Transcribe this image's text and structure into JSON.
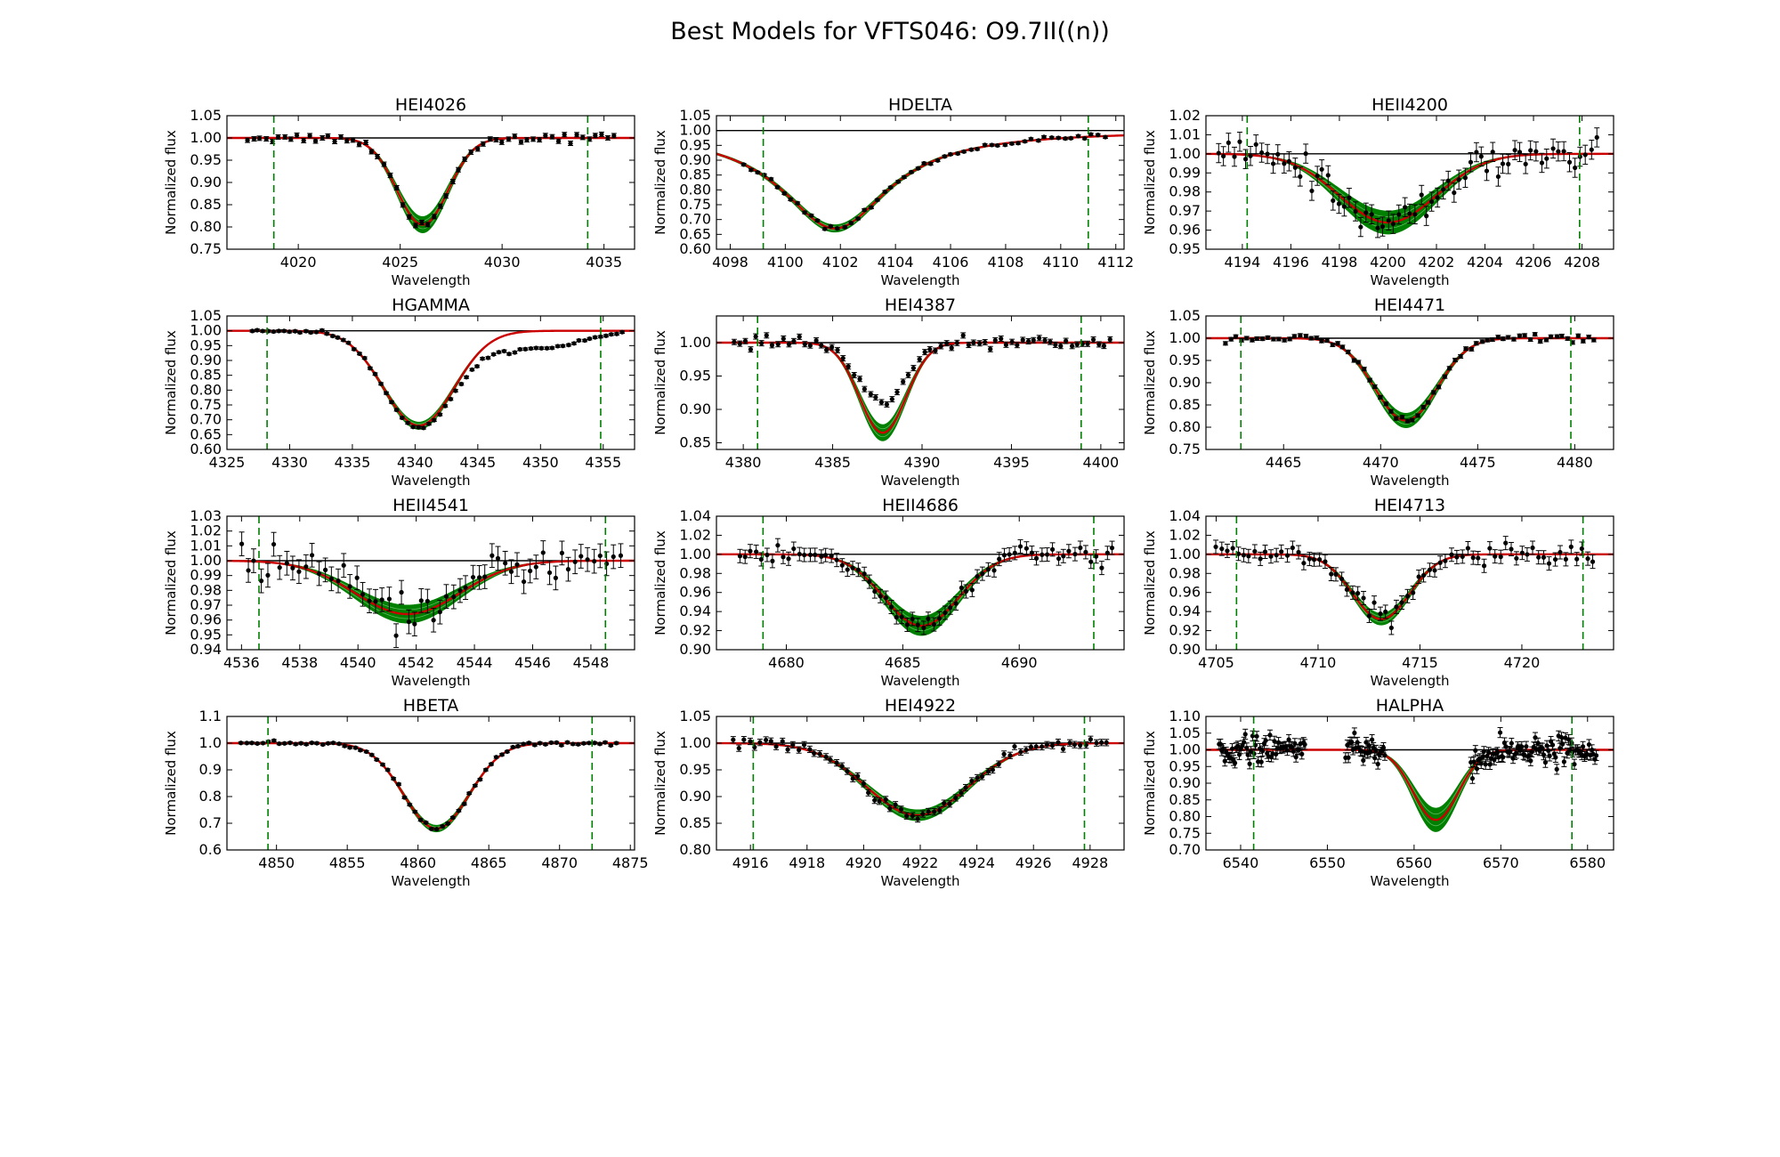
{
  "figure": {
    "title": "Best Models for VFTS046: O9.7II((n))",
    "colors": {
      "data": "#000000",
      "model_best": "#cc0000",
      "model_grid": "#008000",
      "window": "#008000",
      "continuum": "#000000"
    }
  },
  "chart_data": [
    {
      "type": "line",
      "title": "HEI4026",
      "xlabel": "Wavelength",
      "ylabel": "Normalized flux",
      "xlim": [
        4016.5,
        4036.5
      ],
      "ylim": [
        0.75,
        1.05
      ],
      "xticks": [
        4020,
        4025,
        4030,
        4035
      ],
      "xtick_labels": [
        "4020",
        "4025",
        "4030",
        "4035"
      ],
      "yticks": [
        0.75,
        0.8,
        0.85,
        0.9,
        0.95,
        1.0,
        1.05
      ],
      "ytick_labels": [
        "0.75",
        "0.80",
        "0.85",
        "0.90",
        "0.95",
        "1.00",
        "1.05"
      ],
      "windows": [
        4018.8,
        4034.2
      ],
      "line": {
        "center": 4026.1,
        "depth": 0.195,
        "width": 1.25,
        "spread": 0.018,
        "shape": "g"
      },
      "obs": {
        "x": [
          4017.5,
          4035.5
        ],
        "n": 60,
        "offset": 0.0,
        "offset_center": 4026.1,
        "offset_width": 2,
        "scatter": 0.005,
        "err": 0.005
      }
    },
    {
      "type": "line",
      "title": "HDELTA",
      "xlabel": "Wavelength",
      "ylabel": "Normalized flux",
      "xlim": [
        4097.5,
        4112.3
      ],
      "ylim": [
        0.6,
        1.05
      ],
      "xticks": [
        4098,
        4100,
        4102,
        4104,
        4106,
        4108,
        4110,
        4112
      ],
      "xtick_labels": [
        "4098",
        "4100",
        "4102",
        "4104",
        "4106",
        "4108",
        "4110",
        "4112"
      ],
      "yticks": [
        0.6,
        0.65,
        0.7,
        0.75,
        0.8,
        0.85,
        0.9,
        0.95,
        1.0,
        1.05
      ],
      "ytick_labels": [
        "0.60",
        "0.65",
        "0.70",
        "0.75",
        "0.80",
        "0.85",
        "0.90",
        "0.95",
        "1.00",
        "1.05"
      ],
      "windows": [
        4099.2,
        4111.0
      ],
      "line": {
        "center": 4101.8,
        "depth": 0.33,
        "width": 2.4,
        "spread": 0.012,
        "shape": "l"
      },
      "obs": {
        "x": [
          4098.5,
          4111.6
        ],
        "n": 55,
        "offset": 0.0,
        "offset_center": 4101.8,
        "offset_width": 2,
        "scatter": 0.004,
        "err": 0.004
      }
    },
    {
      "type": "line",
      "title": "HEII4200",
      "xlabel": "Wavelength",
      "ylabel": "Normalized flux",
      "xlim": [
        4192.5,
        4209.3
      ],
      "ylim": [
        0.95,
        1.02
      ],
      "xticks": [
        4194,
        4196,
        4198,
        4200,
        4202,
        4204,
        4206,
        4208
      ],
      "xtick_labels": [
        "4194",
        "4196",
        "4198",
        "4200",
        "4202",
        "4204",
        "4206",
        "4208"
      ],
      "yticks": [
        0.95,
        0.96,
        0.97,
        0.98,
        0.99,
        1.0,
        1.01,
        1.02
      ],
      "ytick_labels": [
        "0.95",
        "0.96",
        "0.97",
        "0.98",
        "0.99",
        "1.00",
        "1.01",
        "1.02"
      ],
      "windows": [
        4194.2,
        4207.9
      ],
      "line": {
        "center": 4200.0,
        "depth": 0.036,
        "width": 2.0,
        "spread": 0.006,
        "shape": "g"
      },
      "obs": {
        "x": [
          4193.0,
          4208.6
        ],
        "n": 70,
        "offset": 0.0,
        "offset_center": 4200,
        "offset_width": 2,
        "scatter": 0.004,
        "err": 0.005
      }
    },
    {
      "type": "line",
      "title": "HGAMMA",
      "xlabel": "Wavelength",
      "ylabel": "Normalized flux",
      "xlim": [
        4325,
        4357.5
      ],
      "ylim": [
        0.6,
        1.05
      ],
      "xticks": [
        4325,
        4330,
        4335,
        4340,
        4345,
        4350,
        4355
      ],
      "xtick_labels": [
        "4325",
        "4330",
        "4335",
        "4340",
        "4345",
        "4350",
        "4355"
      ],
      "yticks": [
        0.6,
        0.65,
        0.7,
        0.75,
        0.8,
        0.85,
        0.9,
        0.95,
        1.0,
        1.05
      ],
      "ytick_labels": [
        "0.60",
        "0.65",
        "0.70",
        "0.75",
        "0.80",
        "0.85",
        "0.90",
        "0.95",
        "1.00",
        "1.05"
      ],
      "windows": [
        4328.2,
        4354.8
      ],
      "line": {
        "center": 4340.3,
        "depth": 0.32,
        "width": 2.8,
        "spread": 0.012,
        "shape": "g"
      },
      "obs": {
        "x": [
          4327.0,
          4356.5
        ],
        "n": 70,
        "offset": -0.06,
        "offset_center": 4349,
        "offset_width": 4,
        "scatter": 0.003,
        "err": 0.004
      }
    },
    {
      "type": "line",
      "title": "HEI4387",
      "xlabel": "Wavelength",
      "ylabel": "Normalized flux",
      "xlim": [
        4378.5,
        4401.3
      ],
      "ylim": [
        0.84,
        1.04
      ],
      "xticks": [
        4380,
        4385,
        4390,
        4395,
        4400
      ],
      "xtick_labels": [
        "4380",
        "4385",
        "4390",
        "4395",
        "4400"
      ],
      "yticks": [
        0.85,
        0.9,
        0.95,
        1.0
      ],
      "ytick_labels": [
        "0.85",
        "0.90",
        "0.95",
        "1.00"
      ],
      "windows": [
        4380.8,
        4398.9
      ],
      "line": {
        "center": 4387.8,
        "depth": 0.135,
        "width": 1.3,
        "spread": 0.012,
        "shape": "g"
      },
      "obs": {
        "x": [
          4379.5,
          4400.5
        ],
        "n": 70,
        "offset": 0.045,
        "offset_center": 4387.8,
        "offset_width": 1.2,
        "scatter": 0.004,
        "err": 0.004
      }
    },
    {
      "type": "line",
      "title": "HEI4471",
      "xlabel": "Wavelength",
      "ylabel": "Normalized flux",
      "xlim": [
        4461,
        4482
      ],
      "ylim": [
        0.75,
        1.05
      ],
      "xticks": [
        4465,
        4470,
        4475,
        4480
      ],
      "xtick_labels": [
        "4465",
        "4470",
        "4475",
        "4480"
      ],
      "yticks": [
        0.75,
        0.8,
        0.85,
        0.9,
        0.95,
        1.0,
        1.05
      ],
      "ytick_labels": [
        "0.75",
        "0.80",
        "0.85",
        "0.90",
        "0.95",
        "1.00",
        "1.05"
      ],
      "windows": [
        4462.8,
        4479.8
      ],
      "line": {
        "center": 4471.3,
        "depth": 0.185,
        "width": 1.6,
        "spread": 0.016,
        "shape": "g"
      },
      "obs": {
        "x": [
          4462.0,
          4481.0
        ],
        "n": 70,
        "offset": 0.0,
        "offset_center": 4471.3,
        "offset_width": 2,
        "scatter": 0.004,
        "err": 0.004
      }
    },
    {
      "type": "line",
      "title": "HEII4541",
      "xlabel": "Wavelength",
      "ylabel": "Normalized flux",
      "xlim": [
        4535.5,
        4549.5
      ],
      "ylim": [
        0.94,
        1.03
      ],
      "xticks": [
        4536,
        4538,
        4540,
        4542,
        4544,
        4546,
        4548
      ],
      "xtick_labels": [
        "4536",
        "4538",
        "4540",
        "4542",
        "4544",
        "4546",
        "4548"
      ],
      "yticks": [
        0.94,
        0.95,
        0.96,
        0.97,
        0.98,
        0.99,
        1.0,
        1.01,
        1.02,
        1.03
      ],
      "ytick_labels": [
        "0.94",
        "0.95",
        "0.96",
        "0.97",
        "0.98",
        "0.99",
        "1.00",
        "1.01",
        "1.02",
        "1.03"
      ],
      "windows": [
        4536.6,
        4548.5
      ],
      "line": {
        "center": 4541.7,
        "depth": 0.036,
        "width": 1.8,
        "spread": 0.006,
        "shape": "g"
      },
      "obs": {
        "x": [
          4536.0,
          4549.0
        ],
        "n": 60,
        "offset": 0.0,
        "offset_center": 4541.7,
        "offset_width": 2,
        "scatter": 0.006,
        "err": 0.008
      }
    },
    {
      "type": "line",
      "title": "HEII4686",
      "xlabel": "Wavelength",
      "ylabel": "Normalized flux",
      "xlim": [
        4677,
        4694.5
      ],
      "ylim": [
        0.9,
        1.04
      ],
      "xticks": [
        4680,
        4685,
        4690
      ],
      "xtick_labels": [
        "4680",
        "4685",
        "4690"
      ],
      "yticks": [
        0.9,
        0.92,
        0.94,
        0.96,
        0.98,
        1.0,
        1.02,
        1.04
      ],
      "ytick_labels": [
        "0.90",
        "0.92",
        "0.94",
        "0.96",
        "0.98",
        "1.00",
        "1.02",
        "1.04"
      ],
      "windows": [
        4679.0,
        4693.2
      ],
      "line": {
        "center": 4685.8,
        "depth": 0.075,
        "width": 1.6,
        "spread": 0.01,
        "shape": "g"
      },
      "obs": {
        "x": [
          4678.0,
          4694.0
        ],
        "n": 70,
        "offset": 0.0,
        "offset_center": 4685.8,
        "offset_width": 2,
        "scatter": 0.005,
        "err": 0.007
      }
    },
    {
      "type": "line",
      "title": "HEI4713",
      "xlabel": "Wavelength",
      "ylabel": "Normalized flux",
      "xlim": [
        4704.5,
        4724.5
      ],
      "ylim": [
        0.9,
        1.04
      ],
      "xticks": [
        4705,
        4710,
        4715,
        4720
      ],
      "xtick_labels": [
        "4705",
        "4710",
        "4715",
        "4720"
      ],
      "yticks": [
        0.9,
        0.92,
        0.94,
        0.96,
        0.98,
        1.0,
        1.02,
        1.04
      ],
      "ytick_labels": [
        "0.90",
        "0.92",
        "0.94",
        "0.96",
        "0.98",
        "1.00",
        "1.02",
        "1.04"
      ],
      "windows": [
        4706.0,
        4723.0
      ],
      "line": {
        "center": 4713.1,
        "depth": 0.068,
        "width": 1.4,
        "spread": 0.006,
        "shape": "g"
      },
      "obs": {
        "x": [
          4705.0,
          4723.5
        ],
        "n": 70,
        "offset": 0.0,
        "offset_center": 4713,
        "offset_width": 2,
        "scatter": 0.005,
        "err": 0.007
      }
    },
    {
      "type": "line",
      "title": "HBETA",
      "xlabel": "Wavelength",
      "ylabel": "Normalized flux",
      "xlim": [
        4846.5,
        4875.3
      ],
      "ylim": [
        0.6,
        1.1
      ],
      "xticks": [
        4850,
        4855,
        4860,
        4865,
        4870,
        4875
      ],
      "xtick_labels": [
        "4850",
        "4855",
        "4860",
        "4865",
        "4870",
        "4875"
      ],
      "yticks": [
        0.6,
        0.7,
        0.8,
        0.9,
        1.0,
        1.1
      ],
      "ytick_labels": [
        "0.6",
        "0.7",
        "0.8",
        "0.9",
        "1.0",
        "1.1"
      ],
      "windows": [
        4849.4,
        4872.3
      ],
      "line": {
        "center": 4861.3,
        "depth": 0.32,
        "width": 2.3,
        "spread": 0.012,
        "shape": "g"
      },
      "obs": {
        "x": [
          4847.5,
          4874.0
        ],
        "n": 70,
        "offset": 0.0,
        "offset_center": 4861.3,
        "offset_width": 2,
        "scatter": 0.004,
        "err": 0.004
      }
    },
    {
      "type": "line",
      "title": "HEI4922",
      "xlabel": "Wavelength",
      "ylabel": "Normalized flux",
      "xlim": [
        4914.8,
        4929.2
      ],
      "ylim": [
        0.8,
        1.05
      ],
      "xticks": [
        4916,
        4918,
        4920,
        4922,
        4924,
        4926,
        4928
      ],
      "xtick_labels": [
        "4916",
        "4918",
        "4920",
        "4922",
        "4924",
        "4926",
        "4928"
      ],
      "yticks": [
        0.8,
        0.85,
        0.9,
        0.95,
        1.0,
        1.05
      ],
      "ytick_labels": [
        "0.80",
        "0.85",
        "0.90",
        "0.95",
        "1.00",
        "1.05"
      ],
      "windows": [
        4916.1,
        4927.8
      ],
      "line": {
        "center": 4921.9,
        "depth": 0.135,
        "width": 1.8,
        "spread": 0.01,
        "shape": "g"
      },
      "obs": {
        "x": [
          4915.4,
          4928.6
        ],
        "n": 70,
        "offset": 0.0,
        "offset_center": 4921.9,
        "offset_width": 2,
        "scatter": 0.005,
        "err": 0.006
      }
    },
    {
      "type": "line",
      "title": "HALPHA",
      "xlabel": "Wavelength",
      "ylabel": "Normalized flux",
      "xlim": [
        6536,
        6583
      ],
      "ylim": [
        0.7,
        1.1
      ],
      "xticks": [
        6540,
        6550,
        6560,
        6570,
        6580
      ],
      "xtick_labels": [
        "6540",
        "6550",
        "6560",
        "6570",
        "6580"
      ],
      "yticks": [
        0.7,
        0.75,
        0.8,
        0.85,
        0.9,
        0.95,
        1.0,
        1.05,
        1.1
      ],
      "ytick_labels": [
        "0.70",
        "0.75",
        "0.80",
        "0.85",
        "0.90",
        "0.95",
        "1.00",
        "1.05",
        "1.10"
      ],
      "windows": [
        6541.5,
        6578.2
      ],
      "line": {
        "center": 6562.5,
        "depth": 0.21,
        "width": 2.6,
        "spread": 0.035,
        "shape": "g"
      },
      "obs": {
        "x": [
          6537.5,
          6581.0
        ],
        "n": 260,
        "offset": 0.0,
        "offset_center": 6562.5,
        "offset_width": 2,
        "scatter": 0.02,
        "err": 0.015,
        "gaps": [
          [
            6547.5,
            6552
          ],
          [
            6556.8,
            6566.5
          ]
        ]
      }
    }
  ]
}
